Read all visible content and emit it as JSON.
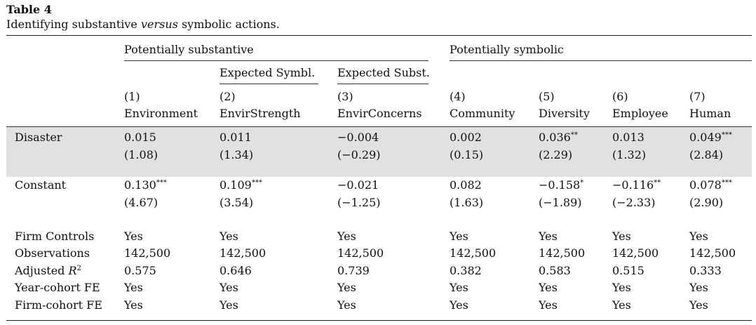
{
  "caption": {
    "label": "Table 4",
    "title_pre": "Identifying substantive ",
    "title_em": "versus",
    "title_post": " symbolic actions."
  },
  "header": {
    "group1": "Potentially substantive",
    "group2": "Potentially symbolic",
    "sub_expected_symbl": "Expected Symbl.",
    "sub_expected_subst": "Expected Subst.",
    "columns": [
      {
        "num": "(1)",
        "name": "Environment"
      },
      {
        "num": "(2)",
        "name": "EnvirStrength"
      },
      {
        "num": "(3)",
        "name": "EnvirConcerns"
      },
      {
        "num": "(4)",
        "name": "Community"
      },
      {
        "num": "(5)",
        "name": "Diversity"
      },
      {
        "num": "(6)",
        "name": "Employee"
      },
      {
        "num": "(7)",
        "name": "Human"
      }
    ]
  },
  "rows": {
    "disaster": {
      "label": "Disaster",
      "coef": [
        "0.015",
        "0.011",
        "−0.004",
        "0.002",
        "0.036",
        "0.013",
        "0.049"
      ],
      "stars": [
        "",
        "",
        "",
        "",
        "**",
        "",
        "***"
      ],
      "t": [
        "(1.08)",
        "(1.34)",
        "(−0.29)",
        "(0.15)",
        "(2.29)",
        "(1.32)",
        "(2.84)"
      ]
    },
    "constant": {
      "label": "Constant",
      "coef": [
        "0.130",
        "0.109",
        "−0.021",
        "0.082",
        "−0.158",
        "−0.116",
        "0.078"
      ],
      "stars": [
        "***",
        "***",
        "",
        "",
        "*",
        "**",
        "***"
      ],
      "t": [
        "(4.67)",
        "(3.54)",
        "(−1.25)",
        "(1.63)",
        "(−1.89)",
        "(−2.33)",
        "(2.90)"
      ]
    },
    "firm_controls": {
      "label": "Firm Controls",
      "values": [
        "Yes",
        "Yes",
        "Yes",
        "Yes",
        "Yes",
        "Yes",
        "Yes"
      ]
    },
    "observations": {
      "label": "Observations",
      "values": [
        "142,500",
        "142,500",
        "142,500",
        "142,500",
        "142,500",
        "142,500",
        "142,500"
      ]
    },
    "adjusted_r2": {
      "label_base": "Adjusted ",
      "label_var": "R",
      "label_sup": "2",
      "values": [
        "0.575",
        "0.646",
        "0.739",
        "0.382",
        "0.583",
        "0.515",
        "0.333"
      ]
    },
    "year_cohort_fe": {
      "label": "Year-cohort FE",
      "values": [
        "Yes",
        "Yes",
        "Yes",
        "Yes",
        "Yes",
        "Yes",
        "Yes"
      ]
    },
    "firm_cohort_fe": {
      "label": "Firm-cohort FE",
      "values": [
        "Yes",
        "Yes",
        "Yes",
        "Yes",
        "Yes",
        "Yes",
        "Yes"
      ]
    }
  },
  "colors": {
    "shade": "#e1e1e1",
    "rule": "#222222"
  }
}
